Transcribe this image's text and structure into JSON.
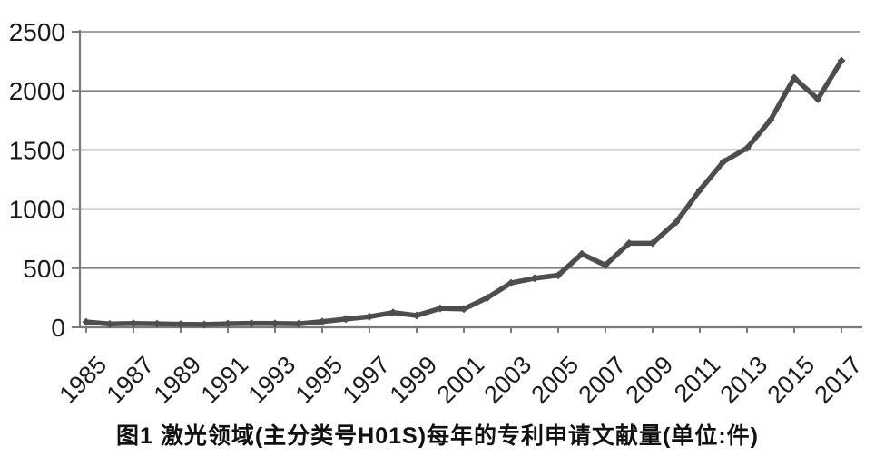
{
  "figure": {
    "caption": "图1  激光领域(主分类号H01S)每年的专利申请文献量(单位:件)"
  },
  "chart_data": {
    "type": "line",
    "title": "",
    "xlabel": "",
    "ylabel": "",
    "x": [
      1985,
      1986,
      1987,
      1988,
      1989,
      1990,
      1991,
      1992,
      1993,
      1994,
      1995,
      1996,
      1997,
      1998,
      1999,
      2000,
      2001,
      2002,
      2003,
      2004,
      2005,
      2006,
      2007,
      2008,
      2009,
      2010,
      2011,
      2012,
      2013,
      2014,
      2015,
      2016,
      2017
    ],
    "values": [
      45,
      28,
      33,
      30,
      26,
      24,
      30,
      34,
      32,
      30,
      48,
      70,
      90,
      125,
      100,
      160,
      155,
      250,
      375,
      415,
      440,
      620,
      525,
      710,
      712,
      890,
      1160,
      1400,
      1515,
      1755,
      2110,
      1930,
      2255
    ],
    "ylim": [
      0,
      2500
    ],
    "y_ticks": [
      0,
      500,
      1000,
      1500,
      2000,
      2500
    ],
    "x_tick_labels": [
      "1985",
      "1987",
      "1989",
      "1991",
      "1993",
      "1995",
      "1997",
      "1999",
      "2001",
      "2003",
      "2005",
      "2007",
      "2009",
      "2011",
      "2013",
      "2015",
      "2017"
    ],
    "grid": "horizontal",
    "legend": "none",
    "marker": "diamond",
    "line_color": "#4d4d4d",
    "grid_color": "#828282",
    "axis_color": "#7b7b7b",
    "tick_label_color": "#1b1b1b"
  }
}
